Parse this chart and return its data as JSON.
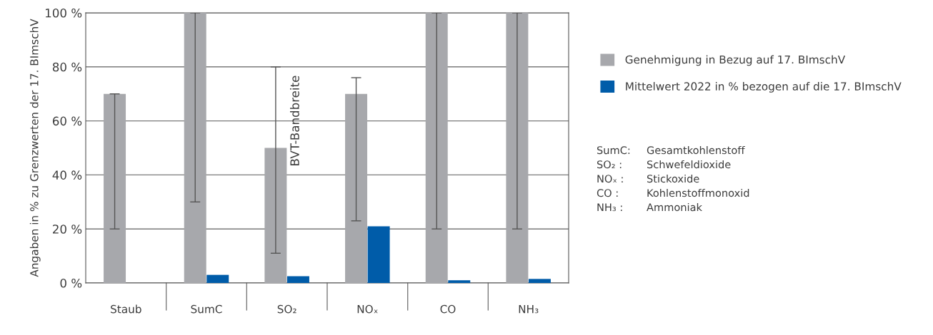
{
  "chart_data": {
    "type": "bar",
    "ylabel": "Angaben in % zu Grenzwerten der 17. BImschV",
    "categories": [
      "Staub",
      "SumC",
      "SO₂",
      "NOₓ",
      "CO",
      "NH₃"
    ],
    "series": [
      {
        "name": "Genehmigung in Bezug auf 17. BImschV",
        "color": "#a7a8ac",
        "values": [
          70,
          100,
          50,
          70,
          100,
          100
        ],
        "errors": [
          [
            20,
            70
          ],
          [
            30,
            100
          ],
          [
            11,
            80
          ],
          [
            23,
            76
          ],
          [
            20,
            100
          ],
          [
            20,
            100
          ]
        ]
      },
      {
        "name": "Mittelwert 2022 in % bezogen auf die 17. BImschV",
        "color": "#005ca9",
        "values": [
          null,
          3,
          2.5,
          21,
          1,
          1.5
        ]
      }
    ],
    "ylim": [
      0,
      100
    ],
    "yticks": [
      {
        "value": 0,
        "label": "0 %"
      },
      {
        "value": 20,
        "label": "20 %"
      },
      {
        "value": 40,
        "label": "40 %"
      },
      {
        "value": 60,
        "label": "60 %"
      },
      {
        "value": 80,
        "label": "80 %"
      },
      {
        "value": 100,
        "label": "100 %"
      }
    ],
    "grid": "y",
    "legend": "right",
    "annotations": [
      "BVT-Bandbreite",
      "SumC: Gesamtkohlenstoff",
      "SO₂ : Schwefeldioxide",
      "NOₓ : Stickoxide",
      "CO : Kohlenstoffmonoxid",
      "NH₃ : Ammoniak"
    ]
  }
}
